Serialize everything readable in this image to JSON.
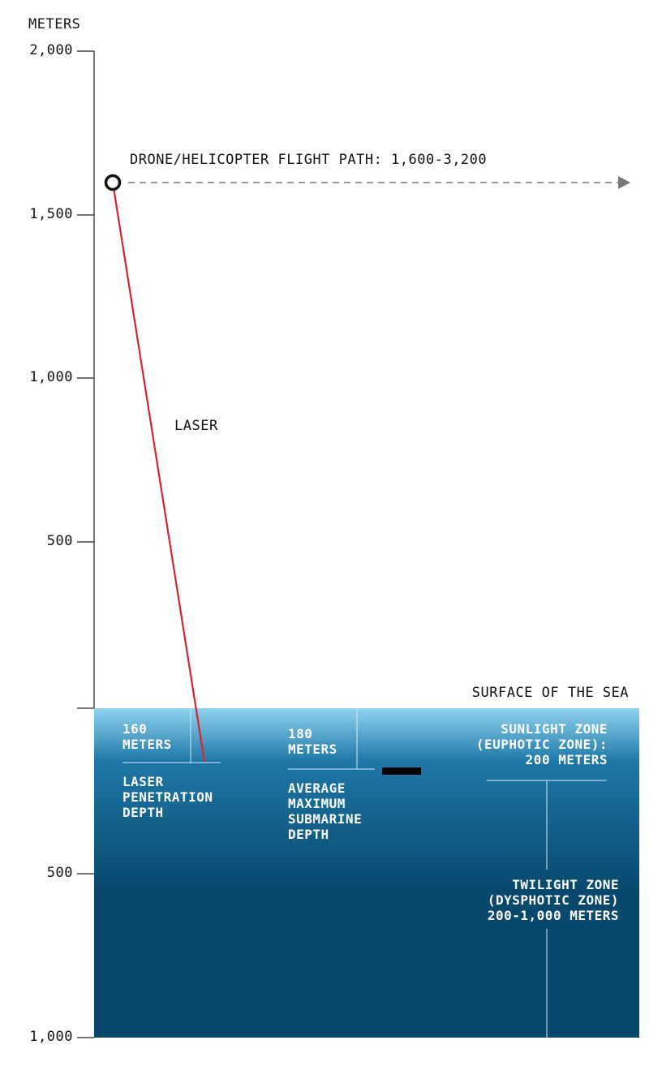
{
  "axis": {
    "unit_label": "METERS",
    "altitude_ticks": [
      "2,000",
      "1,500",
      "1,000",
      "500"
    ],
    "depth_ticks": [
      "500",
      "1,000"
    ]
  },
  "flight_path": {
    "label": "DRONE/HELICOPTER FLIGHT PATH: 1,600-3,200",
    "altitude_m": 1600
  },
  "laser": {
    "label": "LASER",
    "color": "#d8232f"
  },
  "surface_label": "SURFACE OF THE SEA",
  "annotations": {
    "laser_depth": {
      "value_lines": [
        "160",
        "METERS"
      ],
      "text_lines": [
        "LASER",
        "PENETRATION",
        "DEPTH"
      ],
      "depth_m": 160
    },
    "submarine_depth": {
      "value_lines": [
        "180",
        "METERS"
      ],
      "text_lines": [
        "AVERAGE",
        "MAXIMUM",
        "SUBMARINE",
        "DEPTH"
      ],
      "depth_m": 180
    },
    "sunlight_zone": {
      "text_lines": [
        "SUNLIGHT ZONE",
        "(EUPHOTIC ZONE):",
        "200 METERS"
      ],
      "depth_m": 200
    },
    "twilight_zone": {
      "text_lines": [
        "TWILIGHT ZONE",
        "(DYSPHOTIC ZONE)",
        "200-1,000 METERS"
      ],
      "depth_range_m": [
        200,
        1000
      ]
    }
  },
  "colors": {
    "sea_top": "#8fd3ef",
    "sea_mid": "#1f78a8",
    "sea_bottom": "#08486d",
    "axis": "#222222",
    "flight_path": "#777777",
    "water_lines": "#d4ecf6"
  }
}
